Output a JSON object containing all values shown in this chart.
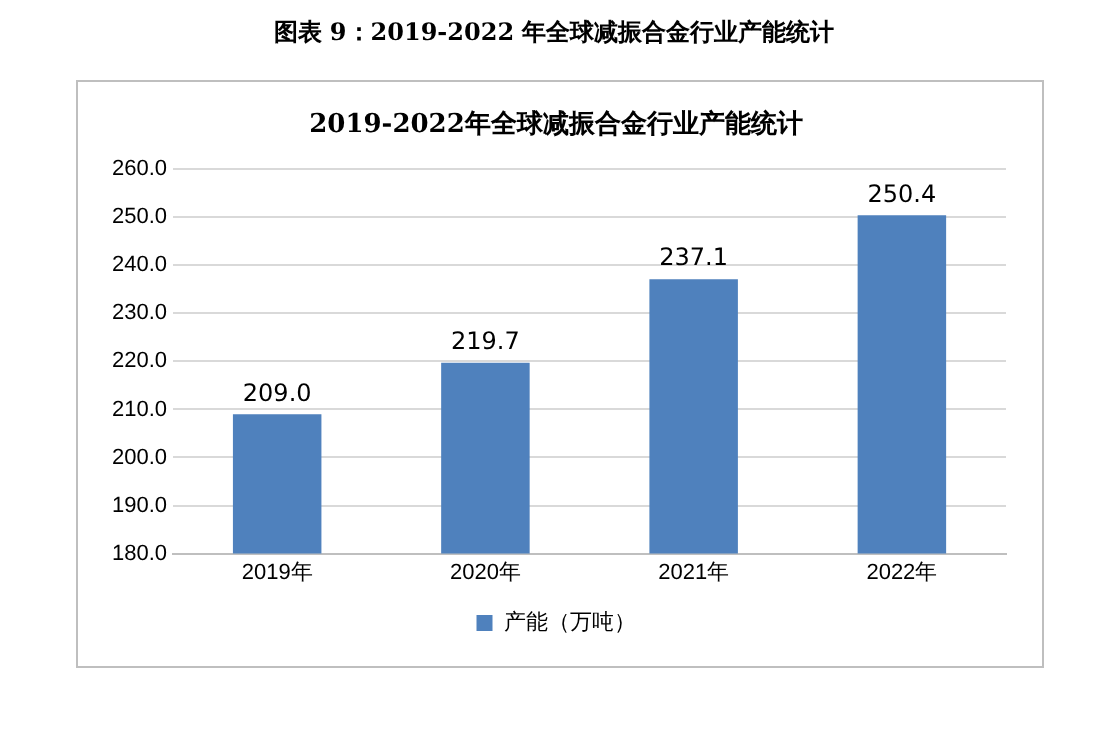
{
  "chart_data": {
    "type": "bar",
    "title": "图表 9：2019-2022 年全球减振合金行业产能统计",
    "subtitle": "2019-2022年全球减振合金行业产能统计",
    "categories": [
      "2019年",
      "2020年",
      "2021年",
      "2022年"
    ],
    "series": [
      {
        "name": "产能（万吨）",
        "color": "#4f81bd",
        "values": [
          209.0,
          219.7,
          237.1,
          250.4
        ]
      }
    ],
    "ylim": [
      180,
      260
    ],
    "yticks": [
      {
        "value": 180,
        "label": "180.0"
      },
      {
        "value": 190,
        "label": "190.0"
      },
      {
        "value": 200,
        "label": "200.0"
      },
      {
        "value": 210,
        "label": "210.0"
      },
      {
        "value": 220,
        "label": "220.0"
      },
      {
        "value": 230,
        "label": "230.0"
      },
      {
        "value": 240,
        "label": "240.0"
      },
      {
        "value": 250,
        "label": "250.0"
      },
      {
        "value": 260,
        "label": "260.0"
      }
    ],
    "value_labels": [
      "209.0",
      "219.7",
      "237.1",
      "250.4"
    ],
    "grid": "y",
    "legend": "bottom"
  }
}
